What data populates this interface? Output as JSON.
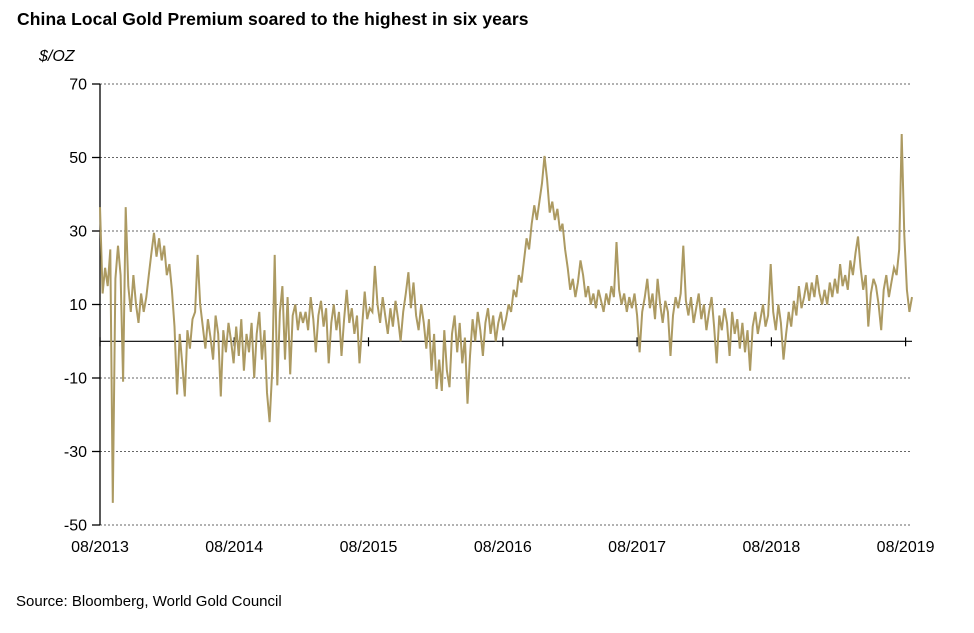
{
  "header": {
    "title": "China Local Gold Premium soared to the highest in six years"
  },
  "footer": {
    "source": "Source: Bloomberg, World Gold Council"
  },
  "chart_data": {
    "type": "line",
    "title": "China Local Gold Premium soared to the highest in six years",
    "series_name": "China local gold premium",
    "unit_label": "$/OZ",
    "ylabel": "$/OZ",
    "xlabel": "",
    "frequency": "weekly",
    "x_range": [
      "08/2013",
      "09/2019"
    ],
    "ylim": [
      -50,
      70
    ],
    "yticks": [
      70,
      50,
      30,
      10,
      -10,
      -30,
      -50
    ],
    "xticks": [
      {
        "label": "08/2013",
        "pos": 0.0
      },
      {
        "label": "08/2014",
        "pos": 0.1653
      },
      {
        "label": "08/2015",
        "pos": 0.3307
      },
      {
        "label": "08/2016",
        "pos": 0.496
      },
      {
        "label": "08/2017",
        "pos": 0.6614
      },
      {
        "label": "08/2018",
        "pos": 0.8268
      },
      {
        "label": "08/2019",
        "pos": 0.9921
      }
    ],
    "grid": "dashed horizontal gridlines at each y tick, solid zero line",
    "legend": "none",
    "line_color": "#AC9A62",
    "grid_color": "#666666",
    "axis_color": "#000000",
    "values": [
      36.5,
      13,
      20,
      15,
      25,
      -44,
      17,
      26,
      18,
      -11,
      36.5,
      15,
      8,
      18,
      10,
      5,
      13,
      8,
      12,
      18,
      24,
      29.5,
      23,
      28,
      22,
      26,
      18,
      21,
      14,
      4,
      -14.5,
      2,
      -6,
      -15,
      3,
      -2,
      6,
      8,
      23.5,
      10,
      4,
      -2,
      6,
      1,
      -5,
      7,
      2,
      -15,
      3,
      -3,
      5,
      0,
      -6,
      4,
      -4,
      6,
      -8,
      2,
      -3,
      5,
      -10,
      2,
      8,
      -5,
      3,
      -14,
      -22,
      -8,
      23.5,
      -12,
      8,
      15,
      -5,
      12,
      -9,
      7,
      10,
      3,
      8,
      5,
      8,
      3,
      12,
      6,
      -3,
      7,
      11,
      4,
      9,
      -6,
      5,
      10,
      3,
      8,
      -4,
      6,
      14,
      5,
      9,
      2,
      7,
      -6,
      4,
      13.5,
      6,
      9,
      8,
      20.5,
      10,
      5,
      12,
      7,
      2,
      9,
      4,
      11,
      6,
      0,
      8,
      13,
      18.8,
      9,
      16,
      7,
      3,
      10,
      5,
      -2,
      6,
      -8,
      2,
      -13,
      -5,
      -13.5,
      3,
      -8,
      -12.5,
      2,
      7,
      -3,
      5,
      -6,
      1,
      -17,
      -4,
      6,
      0,
      8,
      3,
      -4,
      5,
      9,
      2,
      7,
      0,
      5,
      8,
      3,
      6,
      10,
      8,
      14,
      12,
      18,
      16,
      22,
      28,
      25,
      32,
      37,
      33,
      38,
      43,
      50.4,
      44,
      35,
      38,
      33,
      36,
      30,
      32,
      25,
      20,
      14,
      17,
      12,
      16,
      22,
      18,
      12,
      15,
      10,
      13,
      9,
      14,
      11,
      8,
      13,
      10,
      15,
      12,
      27,
      14,
      10,
      13,
      8,
      12,
      9,
      13,
      7,
      -3,
      8,
      12,
      17,
      9,
      13,
      6,
      17,
      10,
      5,
      11,
      8,
      -4,
      7,
      12,
      9,
      13,
      26,
      11,
      7,
      12,
      5,
      9,
      13,
      6,
      10,
      3,
      8,
      12,
      4,
      -6,
      7,
      3,
      9,
      5,
      -4,
      8,
      2,
      6,
      -2,
      5,
      -3,
      3,
      -8,
      4,
      8,
      2,
      6,
      10,
      4,
      7,
      21,
      8,
      3,
      10,
      5,
      -5,
      2,
      8,
      4,
      11,
      7,
      15,
      9,
      12,
      16,
      11,
      16,
      12,
      18,
      13,
      10,
      14,
      10,
      16,
      12,
      17,
      13,
      21,
      15,
      18,
      14,
      22,
      18,
      24,
      28.5,
      20,
      14,
      18,
      4,
      13,
      17,
      15,
      10,
      3,
      14,
      18,
      12,
      16,
      20,
      18,
      25,
      56.4,
      29,
      14,
      8,
      12
    ]
  }
}
